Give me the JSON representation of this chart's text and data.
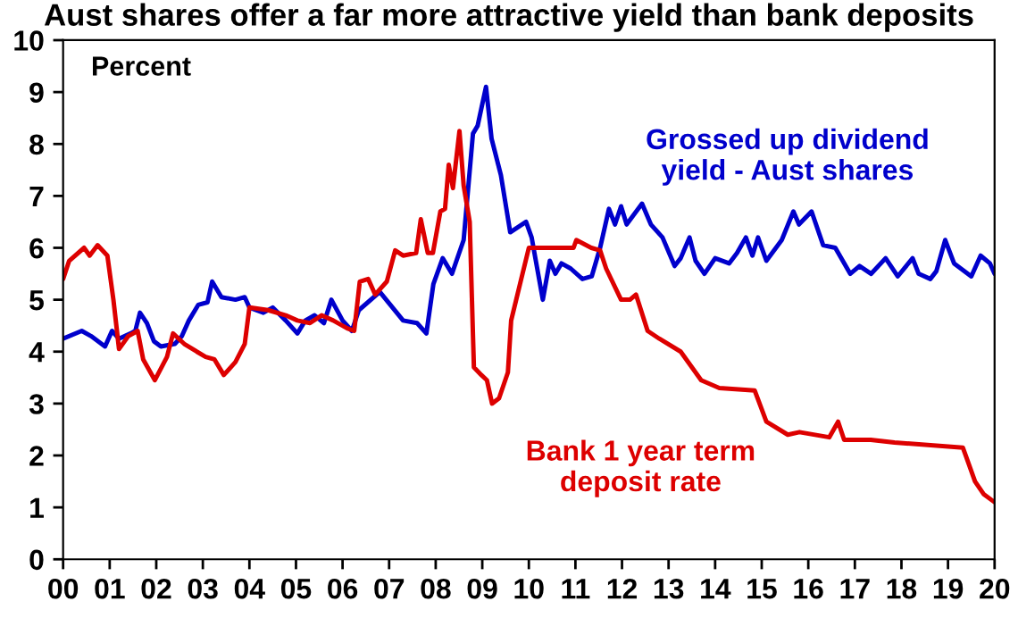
{
  "chart_data": {
    "type": "line",
    "title": "Aust shares offer a far more attractive yield than bank deposits",
    "annotations": [
      "Percent"
    ],
    "xlim": [
      2000,
      2020
    ],
    "xticks": [
      {
        "value": 2000,
        "label": "00"
      },
      {
        "value": 2001,
        "label": "01"
      },
      {
        "value": 2002,
        "label": "02"
      },
      {
        "value": 2003,
        "label": "03"
      },
      {
        "value": 2004,
        "label": "04"
      },
      {
        "value": 2005,
        "label": "05"
      },
      {
        "value": 2006,
        "label": "06"
      },
      {
        "value": 2007,
        "label": "07"
      },
      {
        "value": 2008,
        "label": "08"
      },
      {
        "value": 2009,
        "label": "09"
      },
      {
        "value": 2010,
        "label": "10"
      },
      {
        "value": 2011,
        "label": "11"
      },
      {
        "value": 2012,
        "label": "12"
      },
      {
        "value": 2013,
        "label": "13"
      },
      {
        "value": 2014,
        "label": "14"
      },
      {
        "value": 2015,
        "label": "15"
      },
      {
        "value": 2016,
        "label": "16"
      },
      {
        "value": 2017,
        "label": "17"
      },
      {
        "value": 2018,
        "label": "18"
      },
      {
        "value": 2019,
        "label": "19"
      },
      {
        "value": 2020,
        "label": "20"
      }
    ],
    "ylim": [
      0,
      10
    ],
    "yticks": [
      0,
      1,
      2,
      3,
      4,
      5,
      6,
      7,
      8,
      9,
      10
    ],
    "grid": false,
    "legend": false,
    "marker": "none",
    "line_style": "solid",
    "series": [
      {
        "name": "Grossed up dividend yield - Aust shares",
        "color": "#0000cc",
        "x": [
          2000.0,
          2000.4,
          2000.6,
          2000.9,
          2001.05,
          2001.2,
          2001.45,
          2001.55,
          2001.65,
          2001.8,
          2001.95,
          2002.1,
          2002.4,
          2002.55,
          2002.7,
          2002.9,
          2003.1,
          2003.2,
          2003.4,
          2003.7,
          2003.9,
          2004.0,
          2004.3,
          2004.5,
          2004.78,
          2005.03,
          2005.2,
          2005.4,
          2005.6,
          2005.76,
          2006.0,
          2006.2,
          2006.35,
          2006.8,
          2007.3,
          2007.6,
          2007.8,
          2007.95,
          2008.15,
          2008.35,
          2008.6,
          2008.8,
          2008.9,
          2009.08,
          2009.2,
          2009.4,
          2009.6,
          2009.94,
          2010.06,
          2010.3,
          2010.45,
          2010.57,
          2010.7,
          2010.9,
          2011.15,
          2011.35,
          2011.53,
          2011.72,
          2011.85,
          2011.98,
          2012.1,
          2012.43,
          2012.62,
          2012.87,
          2013.13,
          2013.26,
          2013.45,
          2013.58,
          2013.77,
          2014.0,
          2014.3,
          2014.47,
          2014.66,
          2014.8,
          2014.92,
          2015.1,
          2015.43,
          2015.68,
          2015.8,
          2016.07,
          2016.32,
          2016.58,
          2016.9,
          2017.1,
          2017.35,
          2017.66,
          2017.92,
          2018.24,
          2018.37,
          2018.62,
          2018.75,
          2018.94,
          2019.13,
          2019.5,
          2019.7,
          2019.9,
          2020.0
        ],
        "values": [
          4.25,
          4.4,
          4.3,
          4.1,
          4.4,
          4.25,
          4.35,
          4.4,
          4.75,
          4.55,
          4.2,
          4.1,
          4.15,
          4.3,
          4.6,
          4.9,
          4.95,
          5.35,
          5.05,
          5.0,
          5.05,
          4.85,
          4.75,
          4.85,
          4.6,
          4.35,
          4.6,
          4.7,
          4.55,
          5.0,
          4.6,
          4.4,
          4.8,
          5.15,
          4.6,
          4.55,
          4.35,
          5.3,
          5.8,
          5.5,
          6.15,
          8.2,
          8.35,
          9.1,
          8.1,
          7.4,
          6.3,
          6.5,
          6.2,
          5.0,
          5.75,
          5.5,
          5.7,
          5.6,
          5.4,
          5.45,
          6.0,
          6.75,
          6.45,
          6.8,
          6.45,
          6.85,
          6.45,
          6.2,
          5.65,
          5.8,
          6.2,
          5.75,
          5.5,
          5.8,
          5.7,
          5.9,
          6.2,
          5.85,
          6.2,
          5.75,
          6.15,
          6.7,
          6.45,
          6.7,
          6.05,
          6.0,
          5.5,
          5.65,
          5.5,
          5.8,
          5.45,
          5.8,
          5.5,
          5.4,
          5.55,
          6.15,
          5.7,
          5.45,
          5.85,
          5.7,
          5.5
        ]
      },
      {
        "name": "Bank 1 year term deposit rate",
        "color": "#dd0000",
        "x": [
          2000.0,
          2000.13,
          2000.45,
          2000.57,
          2000.74,
          2000.95,
          2001.08,
          2001.2,
          2001.4,
          2001.6,
          2001.72,
          2001.97,
          2002.23,
          2002.36,
          2002.6,
          2002.87,
          2003.06,
          2003.25,
          2003.45,
          2003.7,
          2003.9,
          2004.0,
          2004.4,
          2004.78,
          2005.03,
          2005.3,
          2005.55,
          2005.8,
          2006.1,
          2006.25,
          2006.37,
          2006.55,
          2006.7,
          2006.95,
          2007.13,
          2007.3,
          2007.58,
          2007.68,
          2007.83,
          2007.94,
          2008.1,
          2008.2,
          2008.28,
          2008.37,
          2008.51,
          2008.6,
          2008.73,
          2008.82,
          2008.98,
          2009.1,
          2009.21,
          2009.36,
          2009.55,
          2009.62,
          2009.81,
          2010.0,
          2010.96,
          2011.02,
          2011.34,
          2011.53,
          2011.66,
          2011.98,
          2012.17,
          2012.3,
          2012.55,
          2012.8,
          2013.26,
          2013.7,
          2014.09,
          2014.85,
          2015.1,
          2015.56,
          2015.81,
          2016.45,
          2016.64,
          2016.77,
          2017.34,
          2017.85,
          2019.32,
          2019.58,
          2019.77,
          2020.0
        ],
        "values": [
          5.4,
          5.75,
          6.0,
          5.85,
          6.05,
          5.85,
          5.0,
          4.05,
          4.3,
          4.4,
          3.85,
          3.45,
          3.9,
          4.35,
          4.15,
          4.0,
          3.9,
          3.85,
          3.55,
          3.8,
          4.15,
          4.85,
          4.8,
          4.7,
          4.6,
          4.55,
          4.7,
          4.6,
          4.45,
          4.4,
          5.35,
          5.4,
          5.1,
          5.35,
          5.95,
          5.85,
          5.9,
          6.55,
          5.9,
          5.9,
          6.7,
          6.75,
          7.6,
          7.15,
          8.25,
          7.2,
          6.5,
          3.7,
          3.55,
          3.45,
          3.0,
          3.1,
          3.6,
          4.6,
          5.3,
          6.0,
          6.0,
          6.15,
          6.0,
          5.95,
          5.6,
          5.0,
          5.0,
          5.1,
          4.4,
          4.25,
          4.0,
          3.45,
          3.3,
          3.25,
          2.65,
          2.4,
          2.45,
          2.35,
          2.65,
          2.3,
          2.3,
          2.25,
          2.15,
          1.5,
          1.25,
          1.1
        ]
      }
    ]
  }
}
